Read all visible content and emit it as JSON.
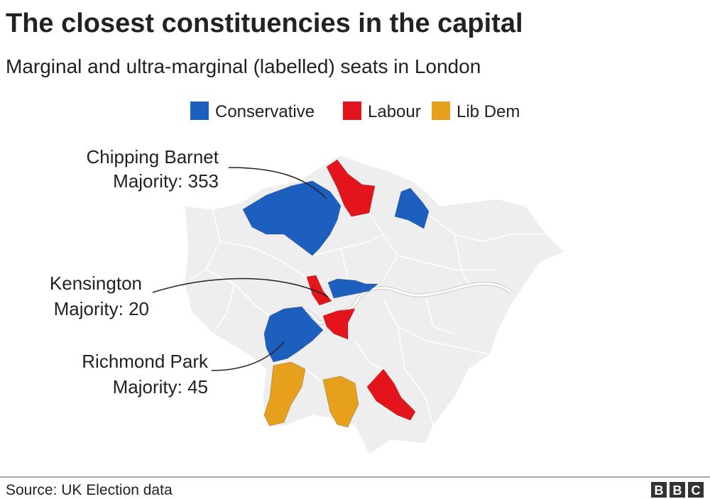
{
  "header": {
    "title": "The closest constituencies in the capital",
    "subtitle": "Marginal and ultra-marginal (labelled) seats in London"
  },
  "legend": {
    "items": [
      {
        "name": "Conservative",
        "color": "#1c5fbf"
      },
      {
        "name": "Labour",
        "color": "#e4141c"
      },
      {
        "name": "Lib Dem",
        "color": "#e7a01b"
      }
    ]
  },
  "annotations": [
    {
      "name": "Chipping Barnet",
      "label": "Majority: 353"
    },
    {
      "name": "Kensington",
      "label": "Majority: 20"
    },
    {
      "name": "Richmond Park",
      "label": "Majority: 45"
    }
  ],
  "footer": {
    "source": "Source: UK Election data",
    "logo": [
      "B",
      "B",
      "C"
    ]
  }
}
